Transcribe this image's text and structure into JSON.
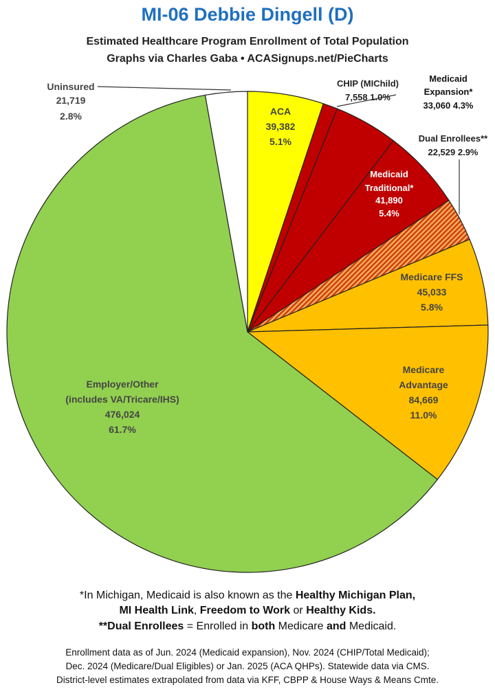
{
  "header": {
    "title": "MI-06 Debbie Dingell (D)",
    "subtitle1": "Estimated Healthcare Program Enrollment of Total Population",
    "subtitle2": "Graphs via Charles Gaba  •  ACASignups.net/PieCharts"
  },
  "chart_data": {
    "type": "pie",
    "title": "MI-06 Debbie Dingell (D)",
    "slices": [
      {
        "name": "ACA",
        "value": 39382,
        "value_label": "39,382",
        "percent": "5.1%",
        "color": "#ffff00"
      },
      {
        "name": "CHIP (MIChild)",
        "value": 7558,
        "value_label": "7,558",
        "percent": "1.0%",
        "color": "#c00000"
      },
      {
        "name": "Medicaid Expansion*",
        "value": 33060,
        "value_label": "33,060",
        "percent": "4.3%",
        "color": "#c00000"
      },
      {
        "name": "Medicaid Traditional*",
        "value": 41890,
        "value_label": "41,890",
        "percent": "5.4%",
        "color": "#c00000"
      },
      {
        "name": "Dual Enrollees**",
        "value": 22529,
        "value_label": "22,529",
        "percent": "2.9%",
        "color": "#e06000",
        "pattern": "hatched"
      },
      {
        "name": "Medicare FFS",
        "value": 45033,
        "value_label": "45,033",
        "percent": "5.8%",
        "color": "#ffc000"
      },
      {
        "name": "Medicare Advantage",
        "value": 84669,
        "value_label": "84,669",
        "percent": "11.0%",
        "color": "#ffc000"
      },
      {
        "name": "Employer/Other (includes VA/Tricare/IHS)",
        "value": 476024,
        "value_label": "476,024",
        "percent": "61.7%",
        "color": "#92d050"
      },
      {
        "name": "Uninsured",
        "value": 21719,
        "value_label": "21,719",
        "percent": "2.8%",
        "color": "#ffffff"
      }
    ]
  },
  "labels": {
    "aca": [
      "ACA",
      "39,382",
      "5.1%"
    ],
    "chip": [
      "CHIP (MIChild)",
      "7,558 1.0%"
    ],
    "expansion": [
      "Medicaid",
      "Expansion*",
      "33,060 4.3%"
    ],
    "dual": [
      "Dual Enrollees**",
      "22,529 2.9%"
    ],
    "traditional": [
      "Medicaid",
      "Traditional*",
      "41,890",
      "5.4%"
    ],
    "ffs": [
      "Medicare FFS",
      "45,033",
      "5.8%"
    ],
    "advantage": [
      "Medicare",
      "Advantage",
      "84,669",
      "11.0%"
    ],
    "employer": [
      "Employer/Other",
      "(includes VA/Tricare/IHS)",
      "476,024",
      "61.7%"
    ],
    "uninsured": [
      "Uninsured",
      "21,719",
      "2.8%"
    ]
  },
  "notes": {
    "line1_pre": "*In Michigan, Medicaid is also known as the ",
    "line1_bold": "Healthy Michigan Plan,",
    "line2_b1": "MI Health Link",
    "line2_t1": ", ",
    "line2_b2": "Freedom to Work",
    "line2_t2": " or ",
    "line2_b3": "Healthy Kids.",
    "line3_b1": "**Dual Enrollees",
    "line3_t1": " = Enrolled in ",
    "line3_b2": "both",
    "line3_t2": " Medicare ",
    "line3_b3": "and",
    "line3_t3": " Medicaid."
  },
  "sources": {
    "line1": "Enrollment data as of Jun. 2024 (Medicaid expansion), Nov. 2024 (CHIP/Total Medicaid);",
    "line2": "Dec. 2024 (Medicare/Dual Eligibles) or Jan. 2025 (ACA QHPs). Statewide data via CMS.",
    "line3": "District-level estimates extrapolated from data via KFF, CBPP & House Ways & Means Cmte."
  }
}
